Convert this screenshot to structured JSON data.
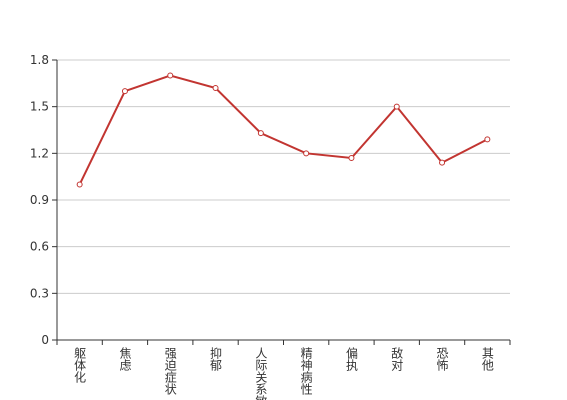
{
  "chart_data": {
    "type": "line",
    "categories": [
      "躯体化",
      "焦虑",
      "强迫症状",
      "抑郁",
      "人际关系敏感",
      "精神病性",
      "偏执",
      "敌对",
      "恐怖",
      "其他"
    ],
    "values": [
      1.0,
      1.6,
      1.7,
      1.62,
      1.33,
      1.2,
      1.17,
      1.5,
      1.14,
      1.29
    ],
    "color": "#c23531",
    "ylim": [
      0,
      1.8
    ],
    "yticks": [
      0,
      0.3,
      0.6,
      0.9,
      1.2,
      1.5,
      1.8
    ],
    "grid": true
  }
}
